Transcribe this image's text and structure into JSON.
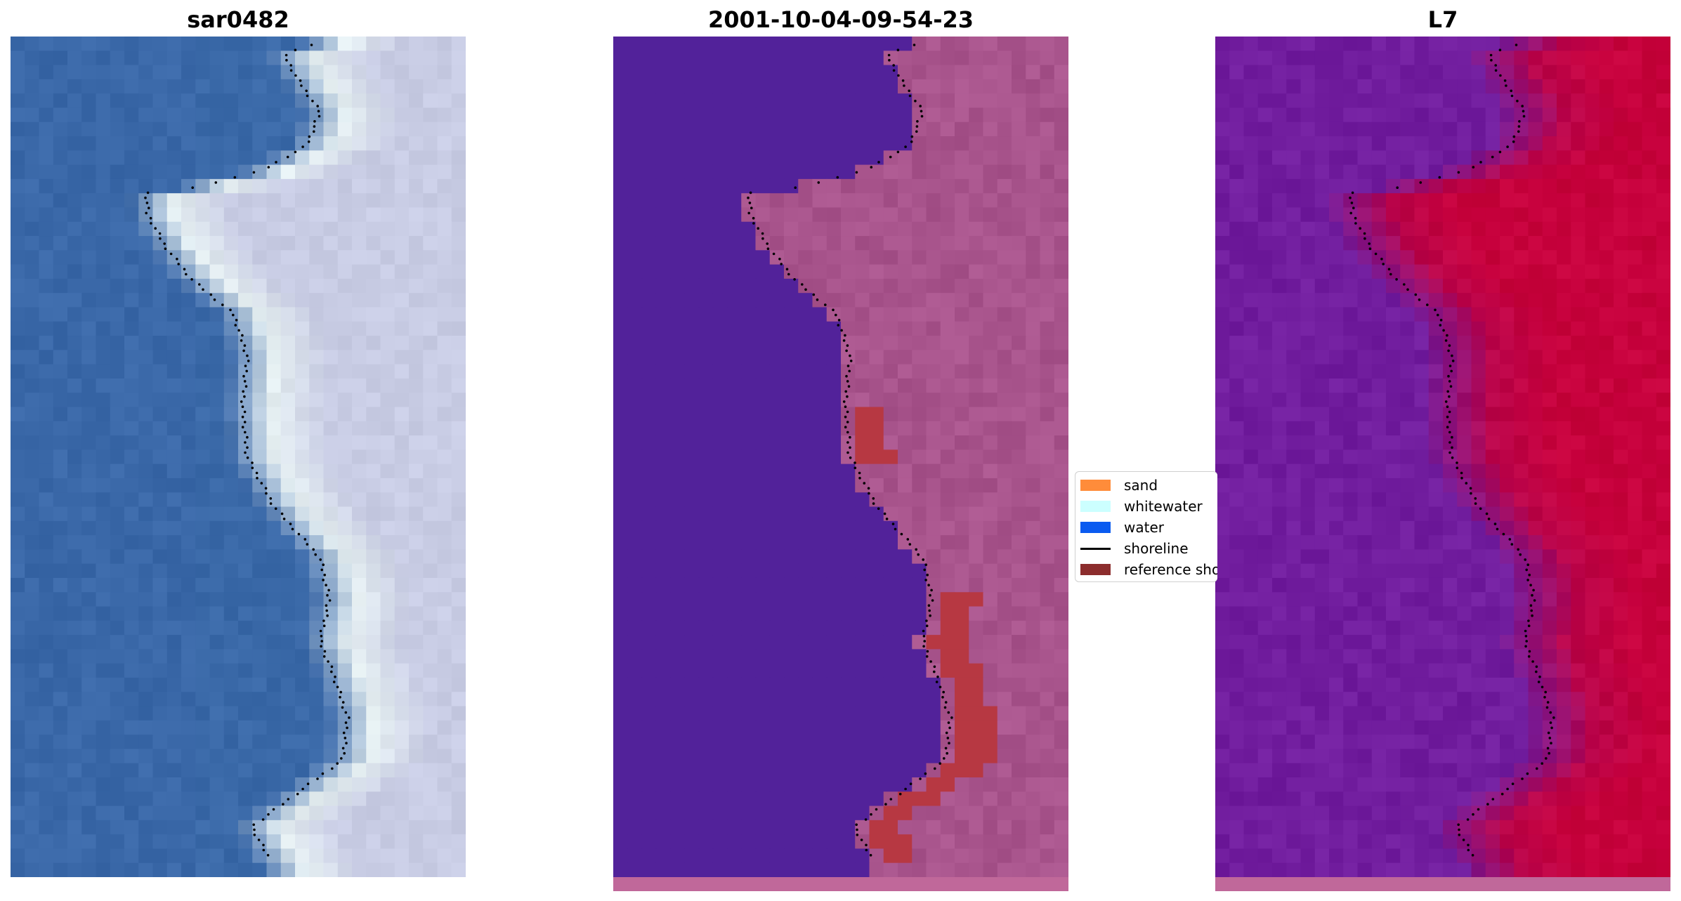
{
  "panels": [
    {
      "title": "sar0482",
      "style": "rgb"
    },
    {
      "title": "2001-10-04-09-54-23",
      "style": "classified"
    },
    {
      "title": "L7",
      "style": "index"
    }
  ],
  "legend": {
    "items": [
      {
        "label": "sand",
        "kind": "patch",
        "color": "#ff8c3a"
      },
      {
        "label": "whitewater",
        "kind": "patch",
        "color": "#ccffff"
      },
      {
        "label": "water",
        "kind": "patch",
        "color": "#0a5bf0"
      },
      {
        "label": "shoreline",
        "kind": "line",
        "color": "#000000"
      },
      {
        "label": "reference shoreline buffer",
        "kind": "patch",
        "color": "#8c2d2d"
      }
    ]
  },
  "colors": {
    "water_rgb": "#3a68a8",
    "land_rgb": "#c8cce4",
    "surf_rgb": "#e6f0f2",
    "classified_water": "#52229a",
    "classified_land": "#a8548c",
    "reference_buffer": "#b73842",
    "index_low": "#6d1fa3",
    "index_high": "#c6003c",
    "bottom_strip": "#c0689a"
  }
}
